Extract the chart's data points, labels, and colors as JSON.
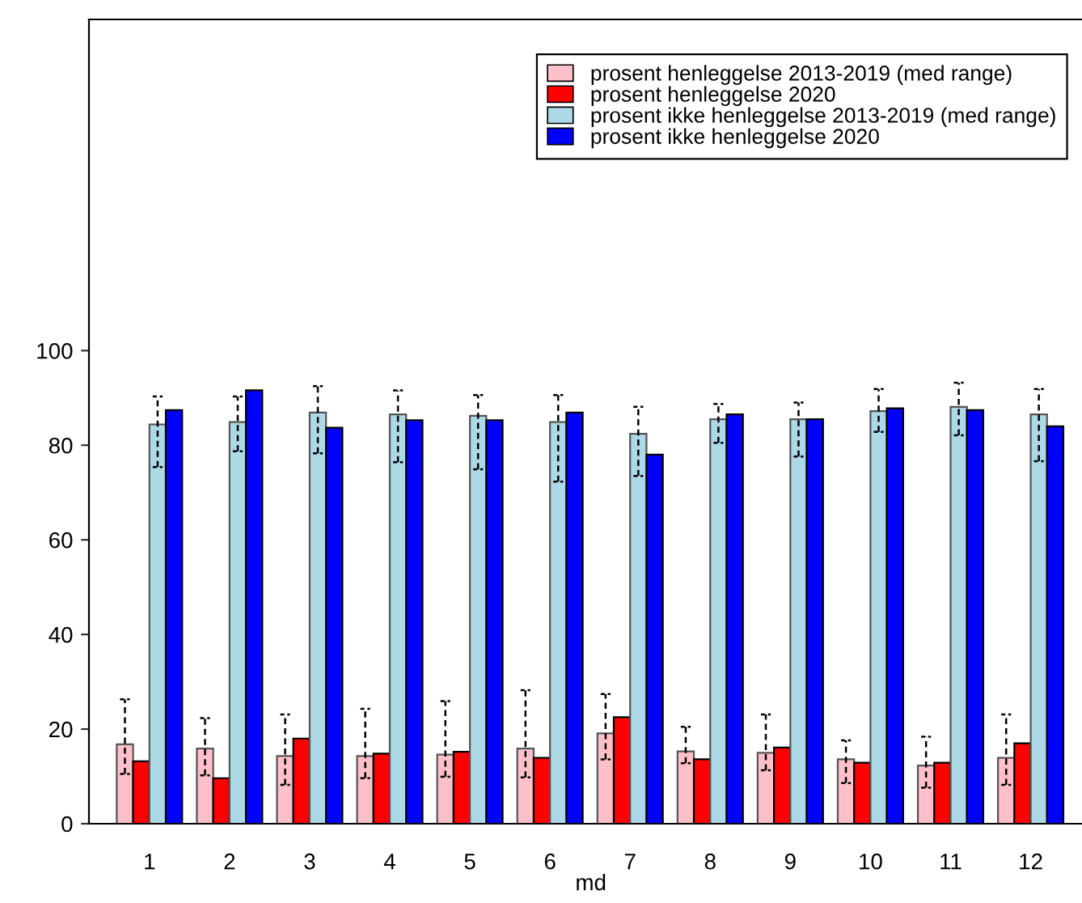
{
  "chart_data": {
    "type": "bar",
    "xlabel": "md",
    "categories": [
      "1",
      "2",
      "3",
      "4",
      "5",
      "6",
      "7",
      "8",
      "9",
      "10",
      "11",
      "12"
    ],
    "series": [
      {
        "name": "prosent henleggelse 2013-2019 (med range)",
        "color": "#ffc0cb",
        "values": [
          16.8,
          15.9,
          14.3,
          14.3,
          14.6,
          15.9,
          19.1,
          15.3,
          15.0,
          13.6,
          12.3,
          13.9
        ],
        "errors": [
          [
            10.5,
            26.3
          ],
          [
            10.2,
            22.3
          ],
          [
            8.2,
            23.1
          ],
          [
            9.6,
            24.3
          ],
          [
            9.9,
            25.9
          ],
          [
            9.8,
            28.2
          ],
          [
            13.6,
            27.4
          ],
          [
            12.8,
            20.5
          ],
          [
            11.3,
            23.1
          ],
          [
            8.6,
            17.6
          ],
          [
            7.6,
            18.4
          ],
          [
            8.2,
            23.1
          ]
        ]
      },
      {
        "name": "prosent henleggelse 2020",
        "color": "#ff0000",
        "values": [
          13.2,
          9.6,
          18.0,
          14.8,
          15.2,
          13.9,
          22.5,
          13.6,
          16.1,
          12.9,
          12.9,
          17.0
        ]
      },
      {
        "name": "prosent ikke henleggelse 2013-2019 (med range)",
        "color": "#add8e6",
        "values": [
          84.4,
          84.9,
          86.9,
          86.5,
          86.2,
          84.9,
          82.4,
          85.5,
          85.5,
          87.2,
          88.1,
          86.5
        ],
        "errors": [
          [
            75.4,
            90.3
          ],
          [
            78.7,
            90.3
          ],
          [
            78.3,
            92.5
          ],
          [
            76.4,
            91.6
          ],
          [
            74.9,
            90.6
          ],
          [
            72.3,
            90.6
          ],
          [
            73.5,
            88.1
          ],
          [
            80.5,
            88.7
          ],
          [
            77.6,
            89.0
          ],
          [
            82.8,
            91.9
          ],
          [
            82.1,
            93.2
          ],
          [
            76.6,
            91.9
          ]
        ]
      },
      {
        "name": "prosent ikke henleggelse 2020",
        "color": "#0000ff",
        "values": [
          87.4,
          91.6,
          83.7,
          85.3,
          85.3,
          86.9,
          78.0,
          86.5,
          85.5,
          87.8,
          87.4,
          84.0
        ]
      }
    ],
    "ylim": [
      0,
      170
    ],
    "yticks": [
      0,
      20,
      40,
      60,
      80,
      100
    ],
    "grid": false,
    "legend": "top right"
  }
}
